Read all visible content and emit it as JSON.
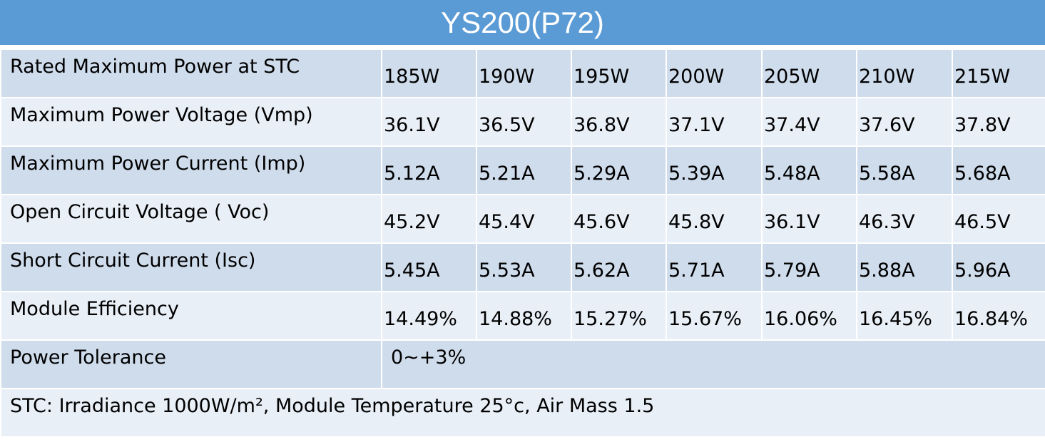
{
  "title": "YS200(P72)",
  "rows": [
    {
      "label": "Rated Maximum Power at STC",
      "values": [
        "185W",
        "190W",
        "195W",
        "200W",
        "205W",
        "210W",
        "215W"
      ]
    },
    {
      "label": "Maximum Power Voltage (Vmp)",
      "values": [
        "36.1V",
        "36.5V",
        "36.8V",
        "37.1V",
        "37.4V",
        "37.6V",
        "37.8V"
      ]
    },
    {
      "label": "Maximum Power Current (Imp)",
      "values": [
        "5.12A",
        "5.21A",
        "5.29A",
        "5.39A",
        "5.48A",
        "5.58A",
        "5.68A"
      ]
    },
    {
      "label": "Open Circuit Voltage ( Voc)",
      "values": [
        "45.2V",
        "45.4V",
        "45.6V",
        "45.8V",
        "36.1V",
        "46.3V",
        "46.5V"
      ]
    },
    {
      "label": "Short Circuit Current (Isc)",
      "values": [
        "5.45A",
        "5.53A",
        "5.62A",
        "5.71A",
        "5.79A",
        "5.88A",
        "5.96A"
      ]
    },
    {
      "label": "Module Efficiency",
      "values": [
        "14.49%",
        "14.88%",
        "15.27%",
        "15.67%",
        "16.06%",
        "16.45%",
        "16.84%"
      ]
    }
  ],
  "tolerance": {
    "label": "Power Tolerance",
    "value": "0~+3%"
  },
  "note": "STC: Irradiance 1000W/m², Module Temperature 25°c, Air Mass 1.5"
}
